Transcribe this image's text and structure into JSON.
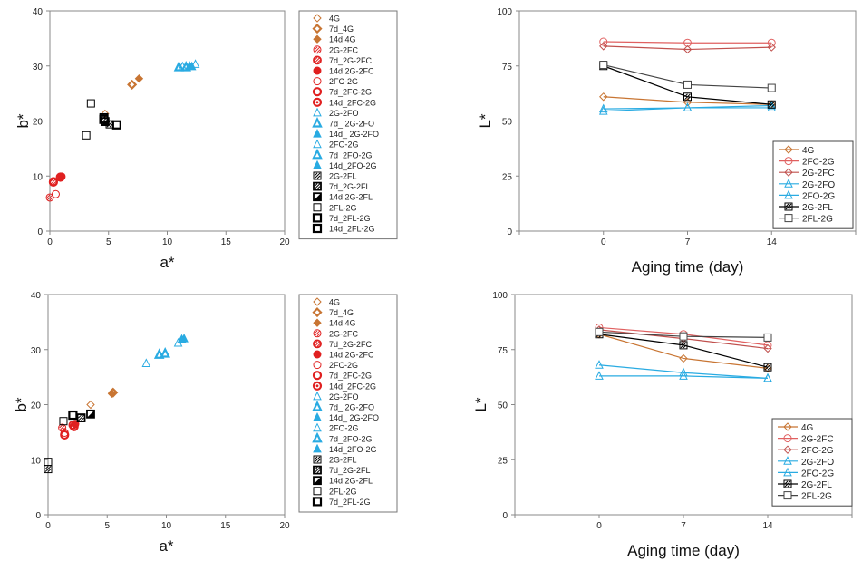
{
  "colors": {
    "g4": "#c87533",
    "fc": "#e02020",
    "fo": "#29abe2",
    "fl": "#000000",
    "ln_fc_g": "#e06060",
    "ln_g_fc": "#c0504d",
    "ln_fl2g": "#444444"
  },
  "chart_data": [
    {
      "type": "scatter",
      "xlabel": "a*",
      "ylabel": "b*",
      "xlim": [
        0,
        20
      ],
      "ylim": [
        0,
        40
      ],
      "xticks": [
        "0",
        "5",
        "10",
        "15",
        "20"
      ],
      "yticks": [
        "0",
        "10",
        "20",
        "30",
        "40"
      ],
      "legend_position": "right",
      "series": [
        {
          "name": "4G",
          "color": "g4",
          "marker": "diamond-open",
          "points": [
            [
              4.7,
              21.3
            ]
          ]
        },
        {
          "name": "7d_4G",
          "color": "g4",
          "marker": "diamond-thick",
          "points": [
            [
              7.0,
              26.6
            ]
          ]
        },
        {
          "name": "14d 4G",
          "color": "g4",
          "marker": "diamond-fill",
          "points": [
            [
              7.6,
              27.7
            ]
          ]
        },
        {
          "name": "2G-2FC",
          "color": "fc",
          "marker": "circle-hatch",
          "points": [
            [
              0.0,
              6.1
            ]
          ]
        },
        {
          "name": "7d_2G-2FC",
          "color": "fc",
          "marker": "circle-hatch2",
          "points": [
            [
              0.3,
              9.0
            ]
          ]
        },
        {
          "name": "14d 2G-2FC",
          "color": "fc",
          "marker": "circle-fill",
          "points": [
            [
              1.0,
              9.9
            ]
          ]
        },
        {
          "name": "2FC-2G",
          "color": "fc",
          "marker": "circle-open",
          "points": [
            [
              0.5,
              6.7
            ]
          ]
        },
        {
          "name": "7d_2FC-2G",
          "color": "fc",
          "marker": "circle-thick",
          "points": [
            [
              0.3,
              8.9
            ]
          ]
        },
        {
          "name": "14d_2FC-2G",
          "color": "fc",
          "marker": "circle-dot",
          "points": [
            [
              0.9,
              9.8
            ]
          ]
        },
        {
          "name": "2G-2FO",
          "color": "fo",
          "marker": "tri-open",
          "points": [
            [
              12.4,
              30.3
            ]
          ]
        },
        {
          "name": "7d_ 2G-2FO",
          "color": "fo",
          "marker": "tri-thick",
          "points": [
            [
              11.6,
              29.8
            ]
          ]
        },
        {
          "name": "14d_ 2G-2FO",
          "color": "fo",
          "marker": "tri-fill",
          "points": [
            [
              11.9,
              30.0
            ]
          ]
        },
        {
          "name": "2FO-2G",
          "color": "fo",
          "marker": "tri-open",
          "points": [
            [
              11.3,
              29.9
            ]
          ]
        },
        {
          "name": "7d_2FO-2G",
          "color": "fo",
          "marker": "tri-thick",
          "points": [
            [
              11.0,
              29.8
            ]
          ]
        },
        {
          "name": "14d_2FO-2G",
          "color": "fo",
          "marker": "tri-fill",
          "points": [
            [
              12.1,
              29.9
            ]
          ]
        },
        {
          "name": "2G-2FL",
          "color": "fl",
          "marker": "square-hatch",
          "points": [
            [
              5.1,
              19.4
            ]
          ]
        },
        {
          "name": "7d_2G-2FL",
          "color": "fl",
          "marker": "square-hatch2",
          "points": [
            [
              4.6,
              20.6
            ]
          ]
        },
        {
          "name": "14d 2G-2FL",
          "color": "fl",
          "marker": "square-half",
          "points": [
            [
              4.7,
              19.9
            ]
          ]
        },
        {
          "name": "2FL-2G",
          "color": "fl",
          "marker": "square-open",
          "points": [
            [
              3.1,
              17.4
            ],
            [
              3.5,
              23.2
            ]
          ]
        },
        {
          "name": "7d_2FL-2G",
          "color": "fl",
          "marker": "square-thick",
          "points": [
            [
              4.6,
              20.3
            ]
          ]
        },
        {
          "name": "14d_2FL-2G",
          "color": "fl",
          "marker": "square-thick2",
          "points": [
            [
              5.7,
              19.3
            ]
          ]
        }
      ]
    },
    {
      "type": "line",
      "xlabel": "Aging time (day)",
      "ylabel": "L*",
      "categories": [
        "0",
        "7",
        "14"
      ],
      "ylim": [
        0,
        100
      ],
      "yticks": [
        "0",
        "25",
        "50",
        "75",
        "100"
      ],
      "legend_position": "bottom-right",
      "series": [
        {
          "name": "4G",
          "color": "g4",
          "marker": "diamond",
          "values": [
            61,
            58.5,
            57.5
          ]
        },
        {
          "name": "2FC-2G",
          "color": "ln_fc_g",
          "marker": "circle",
          "values": [
            86,
            85.5,
            85.5
          ]
        },
        {
          "name": "2G-2FC",
          "color": "ln_g_fc",
          "marker": "diamond",
          "values": [
            84,
            82.5,
            83.5
          ]
        },
        {
          "name": "2G-2FO",
          "color": "fo",
          "marker": "triangle",
          "values": [
            54.5,
            56,
            56
          ]
        },
        {
          "name": "2FO-2G",
          "color": "fo",
          "marker": "triangle",
          "values": [
            55.5,
            56,
            57
          ]
        },
        {
          "name": "2G-2FL",
          "color": "fl",
          "marker": "square-hatch",
          "values": [
            75,
            61,
            57.5
          ]
        },
        {
          "name": "2FL-2G",
          "color": "ln_fl2g",
          "marker": "square",
          "values": [
            75.5,
            66.5,
            65
          ]
        }
      ]
    },
    {
      "type": "scatter",
      "xlabel": "a*",
      "ylabel": "b*",
      "xlim": [
        0,
        20
      ],
      "ylim": [
        0,
        40
      ],
      "xticks": [
        "0",
        "5",
        "10",
        "15",
        "20"
      ],
      "yticks": [
        "0",
        "10",
        "20",
        "30",
        "40"
      ],
      "legend_position": "right",
      "series": [
        {
          "name": "4G",
          "color": "g4",
          "marker": "diamond-open",
          "points": [
            [
              3.6,
              20.0
            ]
          ]
        },
        {
          "name": "7d_4G",
          "color": "g4",
          "marker": "diamond-thick",
          "points": [
            [
              5.5,
              22.2
            ]
          ]
        },
        {
          "name": "14d 4G",
          "color": "g4",
          "marker": "diamond-fill",
          "points": [
            [
              5.4,
              22.0
            ]
          ]
        },
        {
          "name": "2G-2FC",
          "color": "fc",
          "marker": "circle-hatch",
          "points": [
            [
              1.2,
              15.8
            ]
          ]
        },
        {
          "name": "7d_2G-2FC",
          "color": "fc",
          "marker": "circle-hatch2",
          "points": [
            [
              2.1,
              16.3
            ]
          ]
        },
        {
          "name": "14d 2G-2FC",
          "color": "fc",
          "marker": "circle-fill",
          "points": [
            [
              2.3,
              16.5
            ]
          ]
        },
        {
          "name": "2FC-2G",
          "color": "fc",
          "marker": "circle-open",
          "points": [
            [
              1.4,
              14.9
            ]
          ]
        },
        {
          "name": "7d_2FC-2G",
          "color": "fc",
          "marker": "circle-thick",
          "points": [
            [
              1.4,
              14.5
            ]
          ]
        },
        {
          "name": "14d_2FC-2G",
          "color": "fc",
          "marker": "circle-dot",
          "points": [
            [
              2.2,
              16.0
            ]
          ]
        },
        {
          "name": "2G-2FO",
          "color": "fo",
          "marker": "tri-open",
          "points": [
            [
              8.3,
              27.5
            ]
          ]
        },
        {
          "name": "7d_ 2G-2FO",
          "color": "fo",
          "marker": "tri-thick",
          "points": [
            [
              9.4,
              29.1
            ]
          ]
        },
        {
          "name": "14d_ 2G-2FO",
          "color": "fo",
          "marker": "tri-fill",
          "points": [
            [
              11.5,
              32.0
            ]
          ]
        },
        {
          "name": "2FO-2G",
          "color": "fo",
          "marker": "tri-open",
          "points": [
            [
              11.0,
              31.2
            ]
          ]
        },
        {
          "name": "7d_2FO-2G",
          "color": "fo",
          "marker": "tri-thick",
          "points": [
            [
              9.9,
              29.3
            ]
          ]
        },
        {
          "name": "14d_2FO-2G",
          "color": "fo",
          "marker": "tri-fill",
          "points": [
            [
              11.3,
              31.9
            ]
          ]
        },
        {
          "name": "2G-2FL",
          "color": "fl",
          "marker": "square-hatch",
          "points": [
            [
              0.0,
              8.3
            ]
          ]
        },
        {
          "name": "7d_2G-2FL",
          "color": "fl",
          "marker": "square-hatch2",
          "points": [
            [
              2.8,
              17.6
            ]
          ]
        },
        {
          "name": "14d 2G-2FL",
          "color": "fl",
          "marker": "square-half",
          "points": [
            [
              3.6,
              18.3
            ]
          ]
        },
        {
          "name": "2FL-2G",
          "color": "fl",
          "marker": "square-open",
          "points": [
            [
              0.0,
              9.6
            ],
            [
              1.3,
              17.0
            ]
          ]
        },
        {
          "name": "7d_2FL-2G",
          "color": "fl",
          "marker": "square-thick",
          "points": [
            [
              2.1,
              18.1
            ]
          ]
        }
      ]
    },
    {
      "type": "line",
      "xlabel": "Aging time (day)",
      "ylabel": "L*",
      "categories": [
        "0",
        "7",
        "14"
      ],
      "ylim": [
        0,
        100
      ],
      "yticks": [
        "0",
        "25",
        "50",
        "75",
        "100"
      ],
      "legend_position": "bottom-right",
      "series": [
        {
          "name": "4G",
          "color": "g4",
          "marker": "diamond",
          "values": [
            82,
            71,
            66.5
          ]
        },
        {
          "name": "2G-2FC",
          "color": "ln_fc_g",
          "marker": "circle",
          "values": [
            85,
            82,
            77
          ]
        },
        {
          "name": "2FC-2G",
          "color": "ln_g_fc",
          "marker": "diamond",
          "values": [
            84,
            80,
            75.5
          ]
        },
        {
          "name": "2G-2FO",
          "color": "fo",
          "marker": "triangle",
          "values": [
            68,
            64.5,
            62
          ]
        },
        {
          "name": "2FO-2G",
          "color": "fo",
          "marker": "triangle",
          "values": [
            63,
            63,
            62
          ]
        },
        {
          "name": "2G-2FL",
          "color": "fl",
          "marker": "square-hatch",
          "values": [
            82,
            77,
            67
          ]
        },
        {
          "name": "2FL-2G",
          "color": "ln_fl2g",
          "marker": "square",
          "values": [
            83,
            81,
            80.5
          ]
        }
      ]
    }
  ]
}
